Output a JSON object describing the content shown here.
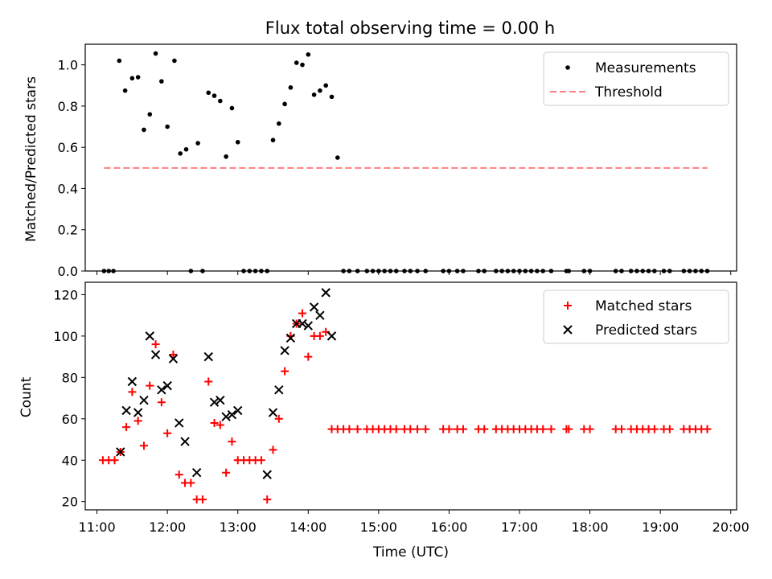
{
  "title": "Flux total observing time = 0.00 h",
  "chart_data": [
    {
      "type": "scatter",
      "ylabel": "Matched/Predicted stars",
      "xlabel": "",
      "xlim": [
        "10:50",
        "20:05"
      ],
      "ylim": [
        0,
        1.1
      ],
      "yticks": [
        "0.0",
        "0.2",
        "0.4",
        "0.6",
        "0.8",
        "1.0"
      ],
      "legend_position": "top-right",
      "series": [
        {
          "name": "Measurements",
          "style": "dot",
          "color": "#000000",
          "points": [
            [
              "11:06",
              0
            ],
            [
              "11:10",
              0
            ],
            [
              "11:14",
              0
            ],
            [
              "11:19",
              1.02
            ],
            [
              "11:24",
              0.875
            ],
            [
              "11:30",
              0.935
            ],
            [
              "11:35",
              0.94
            ],
            [
              "11:40",
              0.685
            ],
            [
              "11:45",
              0.76
            ],
            [
              "11:50",
              1.055
            ],
            [
              "11:55",
              0.92
            ],
            [
              "12:00",
              0.7
            ],
            [
              "12:06",
              1.02
            ],
            [
              "12:11",
              0.57
            ],
            [
              "12:16",
              0.59
            ],
            [
              "12:20",
              0
            ],
            [
              "12:26",
              0.62
            ],
            [
              "12:30",
              0
            ],
            [
              "12:35",
              0.865
            ],
            [
              "12:40",
              0.85
            ],
            [
              "12:45",
              0.825
            ],
            [
              "12:50",
              0.555
            ],
            [
              "12:55",
              0.79
            ],
            [
              "13:00",
              0.625
            ],
            [
              "13:05",
              0
            ],
            [
              "13:10",
              0
            ],
            [
              "13:15",
              0
            ],
            [
              "13:20",
              0
            ],
            [
              "13:25",
              0
            ],
            [
              "13:30",
              0.635
            ],
            [
              "13:35",
              0.715
            ],
            [
              "13:40",
              0.81
            ],
            [
              "13:45",
              0.89
            ],
            [
              "13:50",
              1.01
            ],
            [
              "13:55",
              1.0
            ],
            [
              "14:00",
              1.05
            ],
            [
              "14:05",
              0.855
            ],
            [
              "14:10",
              0.875
            ],
            [
              "14:15",
              0.9
            ],
            [
              "14:20",
              0.845
            ],
            [
              "14:25",
              0.55
            ],
            [
              "14:30",
              0
            ],
            [
              "14:35",
              0
            ],
            [
              "14:42",
              0
            ],
            [
              "14:50",
              0
            ],
            [
              "14:55",
              0
            ],
            [
              "15:00",
              0
            ],
            [
              "15:05",
              0
            ],
            [
              "15:10",
              0
            ],
            [
              "15:15",
              0
            ],
            [
              "15:22",
              0
            ],
            [
              "15:27",
              0
            ],
            [
              "15:33",
              0
            ],
            [
              "15:40",
              0
            ],
            [
              "15:55",
              0
            ],
            [
              "16:00",
              0
            ],
            [
              "16:07",
              0
            ],
            [
              "16:12",
              0
            ],
            [
              "16:25",
              0
            ],
            [
              "16:30",
              0
            ],
            [
              "16:40",
              0
            ],
            [
              "16:45",
              0
            ],
            [
              "16:50",
              0
            ],
            [
              "16:55",
              0
            ],
            [
              "17:00",
              0
            ],
            [
              "17:05",
              0
            ],
            [
              "17:10",
              0
            ],
            [
              "17:15",
              0
            ],
            [
              "17:20",
              0
            ],
            [
              "17:27",
              0
            ],
            [
              "17:40",
              0
            ],
            [
              "17:42",
              0
            ],
            [
              "17:55",
              0
            ],
            [
              "18:00",
              0
            ],
            [
              "18:22",
              0
            ],
            [
              "18:27",
              0
            ],
            [
              "18:35",
              0
            ],
            [
              "18:40",
              0
            ],
            [
              "18:45",
              0
            ],
            [
              "18:50",
              0
            ],
            [
              "18:55",
              0
            ],
            [
              "19:03",
              0
            ],
            [
              "19:08",
              0
            ],
            [
              "19:20",
              0
            ],
            [
              "19:25",
              0
            ],
            [
              "19:30",
              0
            ],
            [
              "19:35",
              0
            ],
            [
              "19:40",
              0
            ]
          ]
        },
        {
          "name": "Threshold",
          "style": "dashed-line",
          "color": "#ff7f7f",
          "points": [
            [
              "11:06",
              0.5
            ],
            [
              "19:40",
              0.5
            ]
          ]
        }
      ]
    },
    {
      "type": "scatter",
      "ylabel": "Count",
      "xlabel": "Time (UTC)",
      "xlim": [
        "10:50",
        "20:05"
      ],
      "ylim": [
        16,
        126
      ],
      "yticks": [
        "20",
        "40",
        "60",
        "80",
        "100",
        "120"
      ],
      "xticks": [
        "11:00",
        "12:00",
        "13:00",
        "14:00",
        "15:00",
        "16:00",
        "17:00",
        "18:00",
        "19:00",
        "20:00"
      ],
      "legend_position": "top-right",
      "series": [
        {
          "name": "Matched stars",
          "style": "plus",
          "color": "#ff0000",
          "points": [
            [
              "11:05",
              40
            ],
            [
              "11:10",
              40
            ],
            [
              "11:15",
              40
            ],
            [
              "11:20",
              44
            ],
            [
              "11:25",
              56
            ],
            [
              "11:30",
              73
            ],
            [
              "11:35",
              59
            ],
            [
              "11:40",
              47
            ],
            [
              "11:45",
              76
            ],
            [
              "11:50",
              96
            ],
            [
              "11:55",
              68
            ],
            [
              "12:00",
              53
            ],
            [
              "12:05",
              91
            ],
            [
              "12:10",
              33
            ],
            [
              "12:15",
              29
            ],
            [
              "12:20",
              29
            ],
            [
              "12:25",
              21
            ],
            [
              "12:30",
              21
            ],
            [
              "12:35",
              78
            ],
            [
              "12:40",
              58
            ],
            [
              "12:45",
              57
            ],
            [
              "12:50",
              34
            ],
            [
              "12:55",
              49
            ],
            [
              "13:00",
              40
            ],
            [
              "13:05",
              40
            ],
            [
              "13:10",
              40
            ],
            [
              "13:15",
              40
            ],
            [
              "13:20",
              40
            ],
            [
              "13:25",
              21
            ],
            [
              "13:30",
              45
            ],
            [
              "13:35",
              60
            ],
            [
              "13:40",
              83
            ],
            [
              "13:45",
              100
            ],
            [
              "13:50",
              106
            ],
            [
              "13:55",
              111
            ],
            [
              "14:00",
              90
            ],
            [
              "14:05",
              100
            ],
            [
              "14:10",
              100
            ],
            [
              "14:15",
              102
            ],
            [
              "14:20",
              55
            ],
            [
              "14:25",
              55
            ],
            [
              "14:30",
              55
            ],
            [
              "14:35",
              55
            ],
            [
              "14:42",
              55
            ],
            [
              "14:50",
              55
            ],
            [
              "14:55",
              55
            ],
            [
              "15:00",
              55
            ],
            [
              "15:05",
              55
            ],
            [
              "15:10",
              55
            ],
            [
              "15:15",
              55
            ],
            [
              "15:22",
              55
            ],
            [
              "15:27",
              55
            ],
            [
              "15:33",
              55
            ],
            [
              "15:40",
              55
            ],
            [
              "15:55",
              55
            ],
            [
              "16:00",
              55
            ],
            [
              "16:07",
              55
            ],
            [
              "16:12",
              55
            ],
            [
              "16:25",
              55
            ],
            [
              "16:30",
              55
            ],
            [
              "16:40",
              55
            ],
            [
              "16:45",
              55
            ],
            [
              "16:50",
              55
            ],
            [
              "16:55",
              55
            ],
            [
              "17:00",
              55
            ],
            [
              "17:05",
              55
            ],
            [
              "17:10",
              55
            ],
            [
              "17:15",
              55
            ],
            [
              "17:20",
              55
            ],
            [
              "17:27",
              55
            ],
            [
              "17:40",
              55
            ],
            [
              "17:42",
              55
            ],
            [
              "17:55",
              55
            ],
            [
              "18:00",
              55
            ],
            [
              "18:22",
              55
            ],
            [
              "18:27",
              55
            ],
            [
              "18:35",
              55
            ],
            [
              "18:40",
              55
            ],
            [
              "18:45",
              55
            ],
            [
              "18:50",
              55
            ],
            [
              "18:55",
              55
            ],
            [
              "19:03",
              55
            ],
            [
              "19:08",
              55
            ],
            [
              "19:20",
              55
            ],
            [
              "19:25",
              55
            ],
            [
              "19:30",
              55
            ],
            [
              "19:35",
              55
            ],
            [
              "19:40",
              55
            ]
          ]
        },
        {
          "name": "Predicted stars",
          "style": "x",
          "color": "#000000",
          "points": [
            [
              "11:20",
              44
            ],
            [
              "11:25",
              64
            ],
            [
              "11:30",
              78
            ],
            [
              "11:35",
              63
            ],
            [
              "11:40",
              69
            ],
            [
              "11:45",
              100
            ],
            [
              "11:50",
              91
            ],
            [
              "11:55",
              74
            ],
            [
              "12:00",
              76
            ],
            [
              "12:05",
              89
            ],
            [
              "12:10",
              58
            ],
            [
              "12:15",
              49
            ],
            [
              "12:25",
              34
            ],
            [
              "12:35",
              90
            ],
            [
              "12:40",
              68
            ],
            [
              "12:45",
              69
            ],
            [
              "12:50",
              61
            ],
            [
              "12:55",
              62
            ],
            [
              "13:00",
              64
            ],
            [
              "13:25",
              33
            ],
            [
              "13:30",
              63
            ],
            [
              "13:35",
              74
            ],
            [
              "13:40",
              93
            ],
            [
              "13:45",
              99
            ],
            [
              "13:50",
              106
            ],
            [
              "13:55",
              106
            ],
            [
              "14:00",
              105
            ],
            [
              "14:05",
              114
            ],
            [
              "14:10",
              110
            ],
            [
              "14:15",
              121
            ],
            [
              "14:20",
              100
            ]
          ]
        }
      ]
    }
  ]
}
